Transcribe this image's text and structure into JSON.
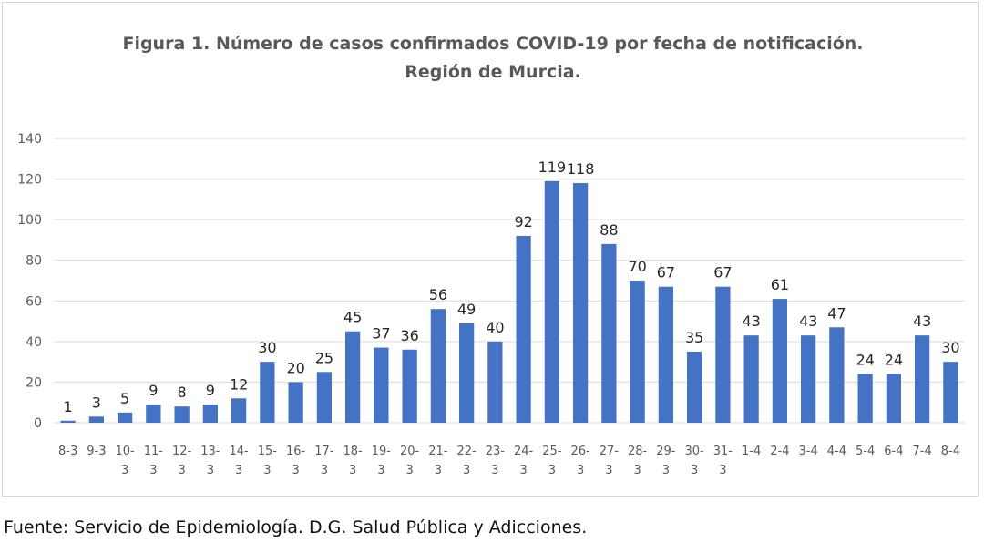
{
  "chart_data": {
    "type": "bar",
    "title": "Figura 1. Número de casos confirmados COVID-19 por fecha de notificación.",
    "subtitle": "Región de Murcia.",
    "xlabel": "",
    "ylabel": "",
    "ylim": [
      0,
      140
    ],
    "yticks": [
      "0",
      "20",
      "40",
      "60",
      "80",
      "100",
      "120",
      "140"
    ],
    "grid": true,
    "bar_color": "#4472c4",
    "categories": [
      [
        "8-3"
      ],
      [
        "9-3"
      ],
      [
        "10-",
        "3"
      ],
      [
        "11-",
        "3"
      ],
      [
        "12-",
        "3"
      ],
      [
        "13-",
        "3"
      ],
      [
        "14-",
        "3"
      ],
      [
        "15-",
        "3"
      ],
      [
        "16-",
        "3"
      ],
      [
        "17-",
        "3"
      ],
      [
        "18-",
        "3"
      ],
      [
        "19-",
        "3"
      ],
      [
        "20-",
        "3"
      ],
      [
        "21-",
        "3"
      ],
      [
        "22-",
        "3"
      ],
      [
        "23-",
        "3"
      ],
      [
        "24-",
        "3"
      ],
      [
        "25-",
        "3"
      ],
      [
        "26-",
        "3"
      ],
      [
        "27-",
        "3"
      ],
      [
        "28-",
        "3"
      ],
      [
        "29-",
        "3"
      ],
      [
        "30-",
        "3"
      ],
      [
        "31-",
        "3"
      ],
      [
        "1-4"
      ],
      [
        "2-4"
      ],
      [
        "3-4"
      ],
      [
        "4-4"
      ],
      [
        "5-4"
      ],
      [
        "6-4"
      ],
      [
        "7-4"
      ],
      [
        "8-4"
      ]
    ],
    "values": [
      1,
      3,
      5,
      9,
      8,
      9,
      12,
      30,
      20,
      25,
      45,
      37,
      36,
      56,
      49,
      40,
      92,
      119,
      118,
      88,
      70,
      67,
      35,
      67,
      43,
      61,
      43,
      47,
      24,
      24,
      43,
      30
    ],
    "data_labels": [
      "1",
      "3",
      "5",
      "9",
      "8",
      "9",
      "12",
      "30",
      "20",
      "25",
      "45",
      "37",
      "36",
      "56",
      "49",
      "40",
      "92",
      "119",
      "118",
      "88",
      "70",
      "67",
      "35",
      "67",
      "43",
      "61",
      "43",
      "47",
      "24",
      "24",
      "43",
      "30"
    ]
  },
  "source": "Fuente: Servicio de Epidemiología. D.G. Salud Pública y Adicciones."
}
